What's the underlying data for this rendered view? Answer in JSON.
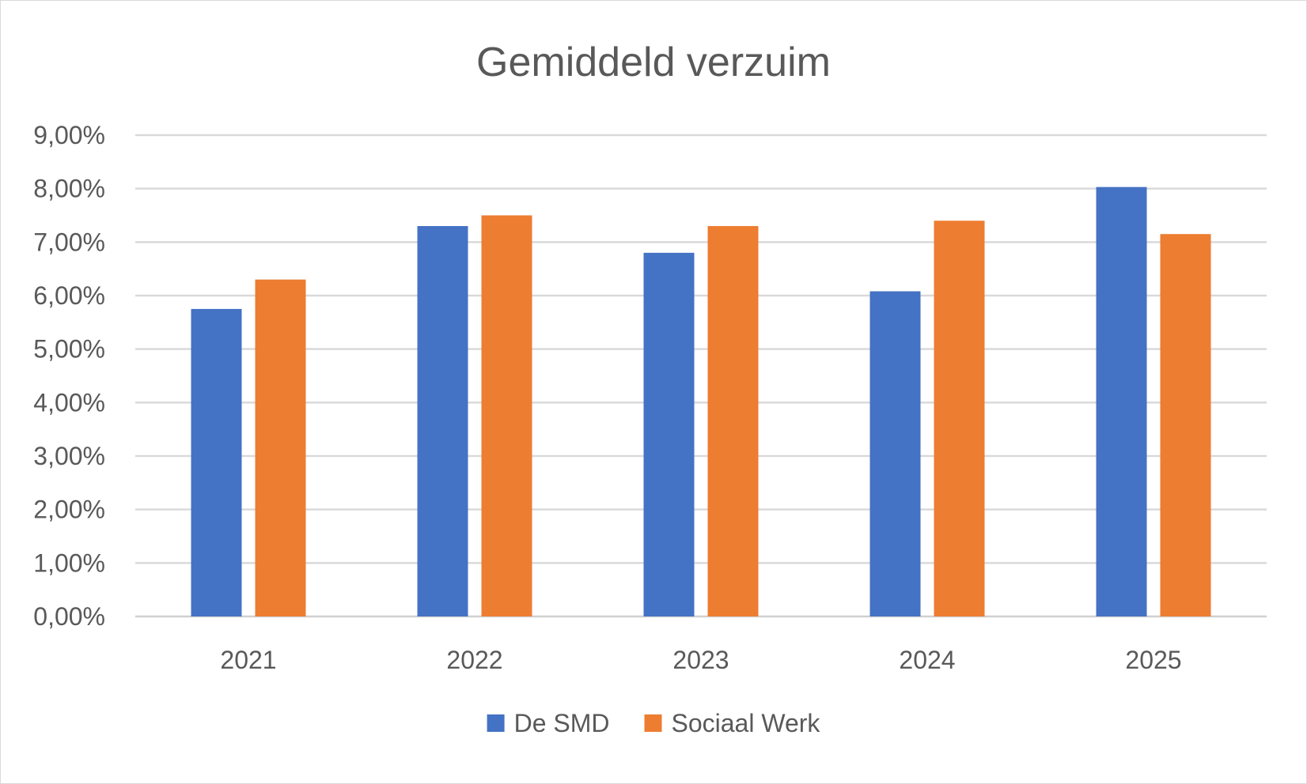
{
  "chart_data": {
    "type": "bar",
    "title": "Gemiddeld verzuim",
    "xlabel": "",
    "ylabel": "",
    "categories": [
      "2021",
      "2022",
      "2023",
      "2024",
      "2025"
    ],
    "series": [
      {
        "name": "De SMD",
        "color": "#4472C4",
        "values": [
          5.75,
          7.3,
          6.8,
          6.08,
          8.03
        ]
      },
      {
        "name": "Sociaal Werk",
        "color": "#ED7D31",
        "values": [
          6.3,
          7.5,
          7.3,
          7.4,
          7.15
        ]
      }
    ],
    "ylim": [
      0,
      9
    ],
    "yticks": [
      0,
      1,
      2,
      3,
      4,
      5,
      6,
      7,
      8,
      9
    ],
    "ytick_labels": [
      "0,00%",
      "1,00%",
      "2,00%",
      "3,00%",
      "4,00%",
      "5,00%",
      "6,00%",
      "7,00%",
      "8,00%",
      "9,00%"
    ],
    "grid": true,
    "legend_position": "bottom"
  }
}
